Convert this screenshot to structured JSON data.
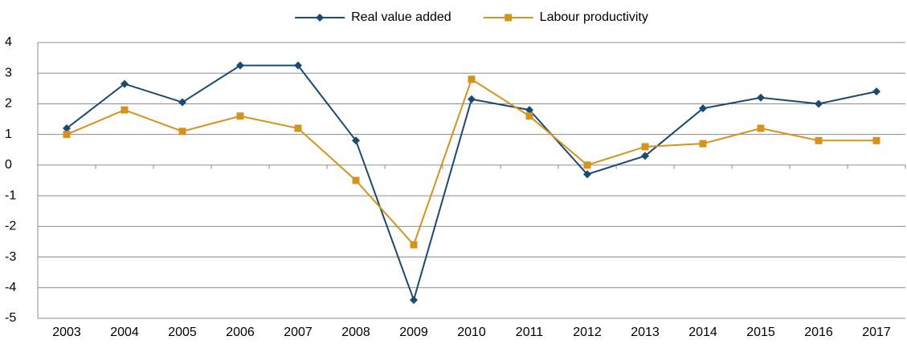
{
  "chart_data": {
    "type": "line",
    "categories": [
      "2003",
      "2004",
      "2005",
      "2006",
      "2007",
      "2008",
      "2009",
      "2010",
      "2011",
      "2012",
      "2013",
      "2014",
      "2015",
      "2016",
      "2017"
    ],
    "series": [
      {
        "name": "Real value added",
        "color": "#1a4a72",
        "marker": "diamond",
        "values": [
          1.2,
          2.65,
          2.05,
          3.25,
          3.25,
          0.8,
          -4.4,
          2.15,
          1.8,
          -0.3,
          0.3,
          1.85,
          2.2,
          2.0,
          2.4
        ]
      },
      {
        "name": "Labour productivity",
        "color": "#d4931c",
        "marker": "square",
        "values": [
          1.0,
          1.8,
          1.1,
          1.6,
          1.2,
          -0.5,
          -2.6,
          2.8,
          1.6,
          0.0,
          0.6,
          0.7,
          1.2,
          0.8,
          0.8
        ]
      }
    ],
    "ylim": [
      -5,
      4
    ],
    "yticks": [
      -5,
      -4,
      -3,
      -2,
      -1,
      0,
      1,
      2,
      3,
      4
    ],
    "grid": true,
    "legend": "top"
  }
}
